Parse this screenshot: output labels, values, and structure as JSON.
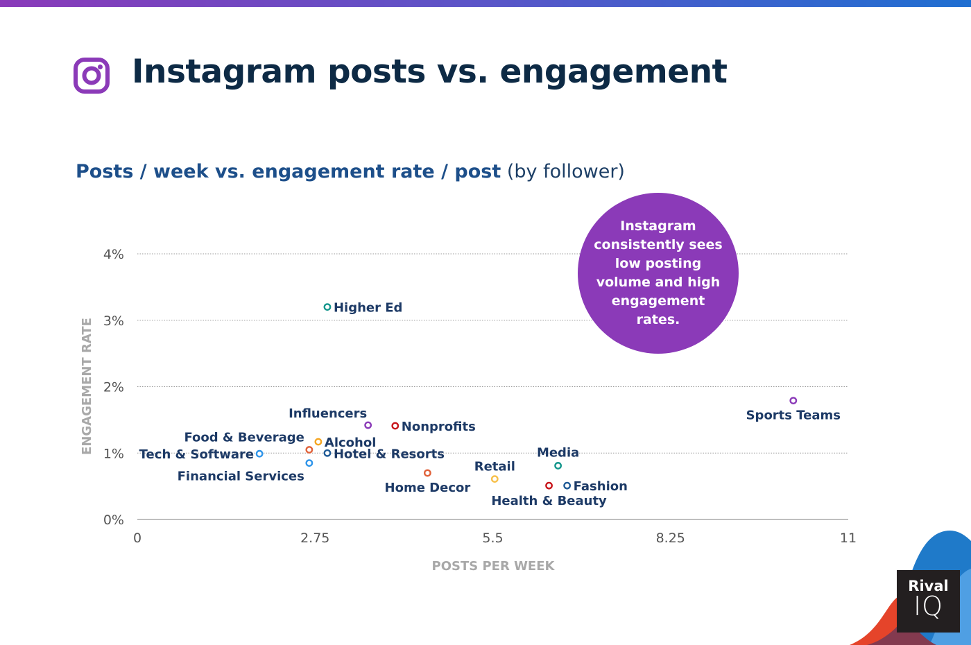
{
  "header": {
    "title": "Instagram posts vs. engagement",
    "icon": "instagram-icon",
    "subtitle_bold": "Posts / week vs. engagement rate / post",
    "subtitle_normal": "(by follower)"
  },
  "callout": "Instagram consistently sees low posting volume and high engagement rates.",
  "brand": {
    "line1": "Rival",
    "line2": "IQ"
  },
  "colors": {
    "purple": "#8b3ab8",
    "navy": "#1d3a66",
    "teal": "#14968c",
    "red": "#c8151b",
    "orange": "#e0623a",
    "yellow": "#f7b731",
    "lightblue": "#2f95ea",
    "darkblue": "#1f5a96"
  },
  "chart_data": {
    "type": "scatter",
    "xlabel": "POSTS PER WEEK",
    "ylabel": "ENGAGEMENT RATE",
    "xlim": [
      0,
      11
    ],
    "ylim": [
      0,
      4
    ],
    "xticks": [
      "0",
      "2.75",
      "5.5",
      "8.25",
      "11"
    ],
    "xtick_values": [
      0,
      2.75,
      5.5,
      8.25,
      11
    ],
    "yticks": [
      "0%",
      "1%",
      "2%",
      "3%",
      "4%"
    ],
    "ytick_values": [
      0,
      1,
      2,
      3,
      4
    ],
    "grid": "horizontal dotted",
    "points": [
      {
        "label": "Higher Ed",
        "x": 2.94,
        "y": 3.2,
        "color": "#14968c"
      },
      {
        "label": "Influencers",
        "x": 3.57,
        "y": 1.42,
        "color": "#8b3ab8"
      },
      {
        "label": "Nonprofits",
        "x": 3.99,
        "y": 1.41,
        "color": "#c8151b"
      },
      {
        "label": "Alcohol",
        "x": 2.8,
        "y": 1.17,
        "color": "#f5a623"
      },
      {
        "label": "Food & Beverage",
        "x": 2.66,
        "y": 1.05,
        "color": "#e0623a"
      },
      {
        "label": "Hotel & Resorts",
        "x": 2.94,
        "y": 1.0,
        "color": "#1f5a96"
      },
      {
        "label": "Tech & Software",
        "x": 1.89,
        "y": 0.99,
        "color": "#2f95ea"
      },
      {
        "label": "Financial Services",
        "x": 2.66,
        "y": 0.85,
        "color": "#2f95ea"
      },
      {
        "label": "Home Decor",
        "x": 4.49,
        "y": 0.7,
        "color": "#e0623a"
      },
      {
        "label": "Retail",
        "x": 5.53,
        "y": 0.61,
        "color": "#f7c04a"
      },
      {
        "label": "Media",
        "x": 6.51,
        "y": 0.81,
        "color": "#14968c"
      },
      {
        "label": "Health & Beauty",
        "x": 6.37,
        "y": 0.51,
        "color": "#c8151b"
      },
      {
        "label": "Fashion",
        "x": 6.65,
        "y": 0.51,
        "color": "#1f5a96"
      },
      {
        "label": "Sports Teams",
        "x": 10.15,
        "y": 1.79,
        "color": "#8b3ab8"
      }
    ]
  }
}
